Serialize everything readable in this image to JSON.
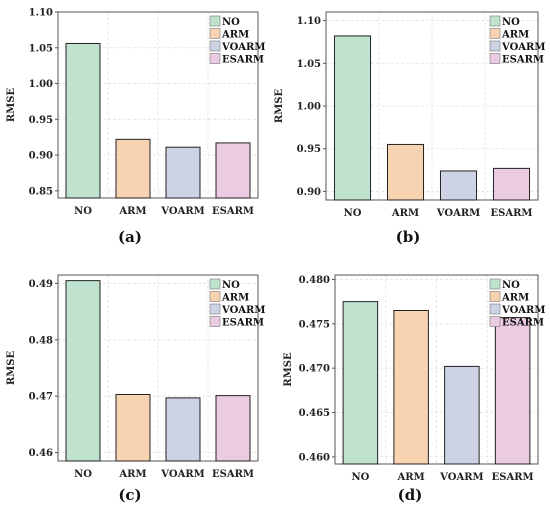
{
  "chart_data": [
    {
      "type": "bar",
      "panel_label": "(a)",
      "categories": [
        "NO",
        "ARM",
        "VOARM",
        "ESARM"
      ],
      "values": [
        1.056,
        0.922,
        0.911,
        0.917
      ],
      "ylabel": "RMSE",
      "ylim": [
        0.84,
        1.1
      ],
      "yticks": [
        0.85,
        0.9,
        0.95,
        1.0,
        1.05,
        1.1
      ],
      "ytick_labels": [
        "0.85",
        "0.90",
        "0.95",
        "1.00",
        "1.05",
        "1.10"
      ],
      "legend": [
        "NO",
        "ARM",
        "VOARM",
        "ESARM"
      ],
      "legend_position": "top-right",
      "grid": true
    },
    {
      "type": "bar",
      "panel_label": "(b)",
      "categories": [
        "NO",
        "ARM",
        "VOARM",
        "ESARM"
      ],
      "values": [
        1.082,
        0.955,
        0.924,
        0.927
      ],
      "ylabel": "RMSE",
      "ylim": [
        0.89,
        1.11
      ],
      "yticks": [
        0.9,
        0.95,
        1.0,
        1.05,
        1.1
      ],
      "ytick_labels": [
        "0.90",
        "0.95",
        "1.00",
        "1.05",
        "1.10"
      ],
      "legend": [
        "NO",
        "ARM",
        "VOARM",
        "ESARM"
      ],
      "legend_position": "top-right",
      "grid": true
    },
    {
      "type": "bar",
      "panel_label": "(c)",
      "categories": [
        "NO",
        "ARM",
        "VOARM",
        "ESARM"
      ],
      "values": [
        0.4905,
        0.4703,
        0.4697,
        0.4701
      ],
      "ylabel": "RMSE",
      "ylim": [
        0.4585,
        0.4915
      ],
      "yticks": [
        0.46,
        0.47,
        0.48,
        0.49
      ],
      "ytick_labels": [
        "0.46",
        "0.47",
        "0.48",
        "0.49"
      ],
      "legend": [
        "NO",
        "ARM",
        "VOARM",
        "ESARM"
      ],
      "legend_position": "top-right",
      "grid": true
    },
    {
      "type": "bar",
      "panel_label": "(d)",
      "categories": [
        "NO",
        "ARM",
        "VOARM",
        "ESARM"
      ],
      "values": [
        0.4775,
        0.4765,
        0.4702,
        0.4757
      ],
      "ylabel": "RMSE",
      "ylim": [
        0.4592,
        0.4805
      ],
      "yticks": [
        0.46,
        0.465,
        0.47,
        0.475,
        0.48
      ],
      "ytick_labels": [
        "0.460",
        "0.465",
        "0.470",
        "0.475",
        "0.480"
      ],
      "legend": [
        "NO",
        "ARM",
        "VOARM",
        "ESARM"
      ],
      "legend_position": "top-right",
      "grid": true
    }
  ],
  "colors": {
    "NO": "#bfe3cf",
    "ARM": "#f8d3b2",
    "VOARM": "#cdd2e4",
    "ESARM": "#ebcbe2"
  }
}
